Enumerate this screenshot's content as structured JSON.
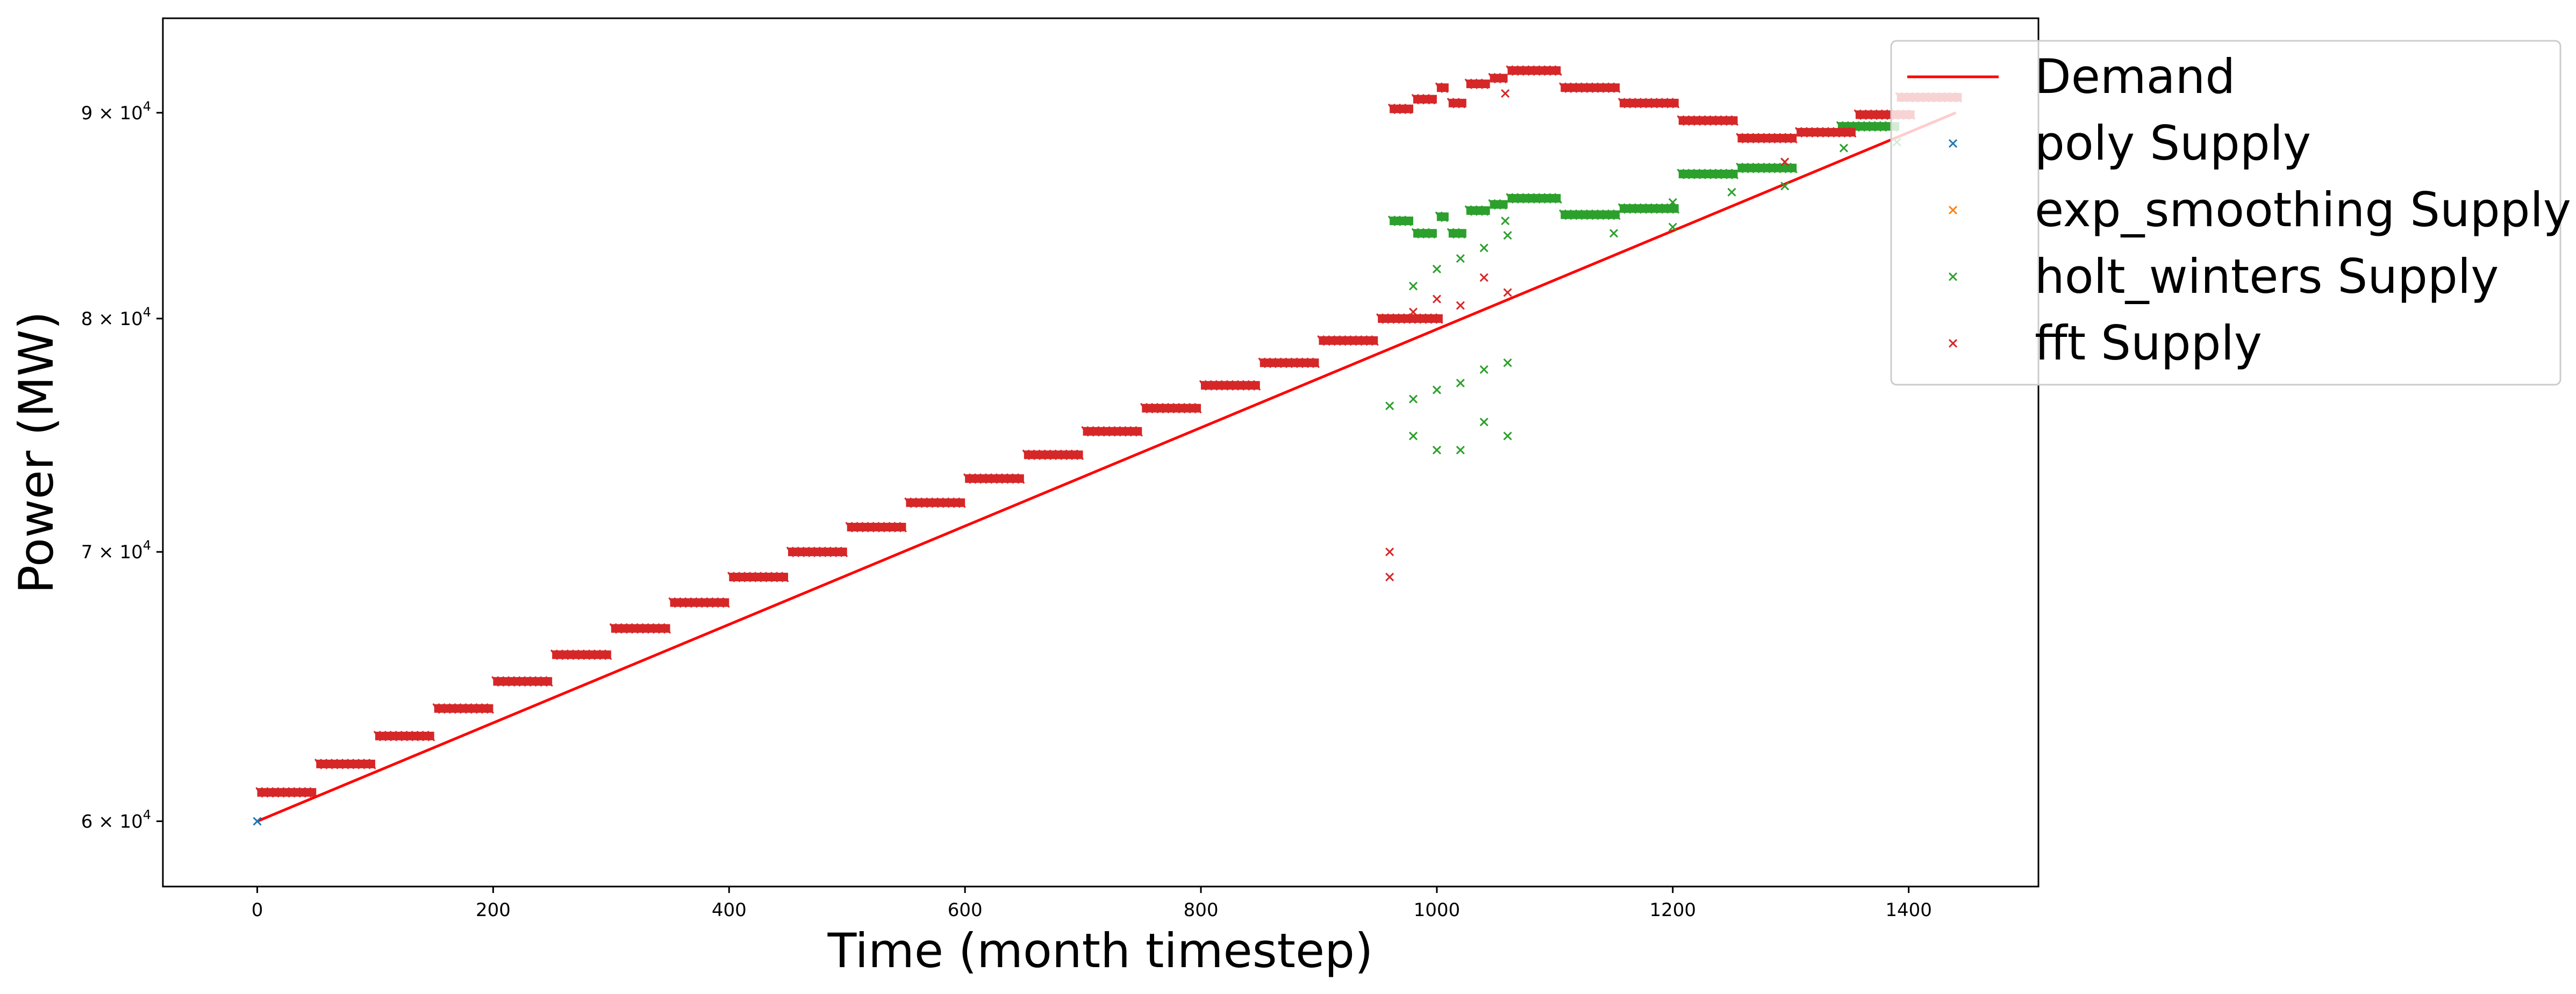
{
  "chart_data": {
    "type": "scatter",
    "xlabel": "Time (month timestep)",
    "ylabel": "Power (MW)",
    "xlim": [
      -80,
      1510
    ],
    "ylim": [
      57800,
      95000
    ],
    "y_scale": "log",
    "grid": false,
    "legend_placement": "top-right",
    "x_ticks": [
      0,
      200,
      400,
      600,
      800,
      1000,
      1200,
      1400
    ],
    "x_tick_labels": [
      "0",
      "200",
      "400",
      "600",
      "800",
      "1000",
      "1200",
      "1400"
    ],
    "y_ticks": [
      {
        "value": 60000,
        "mantissa": "6",
        "exponent": "4"
      },
      {
        "value": 70000,
        "mantissa": "7",
        "exponent": "4"
      },
      {
        "value": 80000,
        "mantissa": "8",
        "exponent": "4"
      },
      {
        "value": 90000,
        "mantissa": "9",
        "exponent": "4"
      }
    ],
    "y_tick_times": "×",
    "y_tick_base": "10",
    "demand": {
      "name": "Demand",
      "color": "#ff0000",
      "x": [
        0,
        1440
      ],
      "y": [
        60000,
        90000
      ]
    },
    "series": [
      {
        "name": "poly Supply",
        "color": "#1f77b4",
        "points": [
          [
            0,
            60000
          ]
        ]
      },
      {
        "name": "exp_smoothing Supply",
        "color": "#ff7f0e",
        "points": []
      },
      {
        "name": "holt_winters Supply",
        "color": "#2ca02c",
        "segments": [
          {
            "x": [
              960,
              980
            ],
            "y": 84600
          },
          {
            "x": [
              980,
              1000
            ],
            "y": 84000
          },
          {
            "x": [
              1000,
              1010
            ],
            "y": 84800
          },
          {
            "x": [
              1010,
              1025
            ],
            "y": 84000
          },
          {
            "x": [
              1025,
              1045
            ],
            "y": 85100
          },
          {
            "x": [
              1045,
              1060
            ],
            "y": 85400
          },
          {
            "x": [
              1060,
              1105
            ],
            "y": 85700
          },
          {
            "x": [
              1105,
              1155
            ],
            "y": 84900
          },
          {
            "x": [
              1155,
              1205
            ],
            "y": 85200
          },
          {
            "x": [
              1205,
              1255
            ],
            "y": 86900
          },
          {
            "x": [
              1255,
              1305
            ],
            "y": 87200
          },
          {
            "x": [
              1340,
              1392
            ],
            "y": 89300
          }
        ],
        "points": [
          [
            960,
            76100
          ],
          [
            980,
            76400
          ],
          [
            1000,
            76800
          ],
          [
            1020,
            77100
          ],
          [
            1040,
            77700
          ],
          [
            1060,
            78000
          ],
          [
            980,
            74800
          ],
          [
            1000,
            74200
          ],
          [
            1020,
            74200
          ],
          [
            1040,
            75400
          ],
          [
            1060,
            74800
          ],
          [
            980,
            81500
          ],
          [
            1000,
            82300
          ],
          [
            1020,
            82800
          ],
          [
            1040,
            83300
          ],
          [
            1060,
            83900
          ],
          [
            1058,
            84600
          ],
          [
            1150,
            84000
          ],
          [
            1200,
            84300
          ],
          [
            1200,
            85500
          ],
          [
            1250,
            86000
          ],
          [
            1295,
            86300
          ],
          [
            1295,
            87500
          ],
          [
            1345,
            88200
          ],
          [
            1390,
            88500
          ]
        ]
      },
      {
        "name": "fft Supply",
        "color": "#d62728",
        "segments": [
          {
            "x": [
              0,
              50
            ],
            "y": 61000
          },
          {
            "x": [
              50,
              100
            ],
            "y": 62000
          },
          {
            "x": [
              100,
              150
            ],
            "y": 63000
          },
          {
            "x": [
              150,
              200
            ],
            "y": 64000
          },
          {
            "x": [
              200,
              250
            ],
            "y": 65000
          },
          {
            "x": [
              250,
              300
            ],
            "y": 66000
          },
          {
            "x": [
              300,
              350
            ],
            "y": 67000
          },
          {
            "x": [
              350,
              400
            ],
            "y": 68000
          },
          {
            "x": [
              400,
              450
            ],
            "y": 69000
          },
          {
            "x": [
              450,
              500
            ],
            "y": 70000
          },
          {
            "x": [
              500,
              550
            ],
            "y": 71000
          },
          {
            "x": [
              550,
              600
            ],
            "y": 72000
          },
          {
            "x": [
              600,
              650
            ],
            "y": 73000
          },
          {
            "x": [
              650,
              700
            ],
            "y": 74000
          },
          {
            "x": [
              700,
              750
            ],
            "y": 75000
          },
          {
            "x": [
              750,
              800
            ],
            "y": 76000
          },
          {
            "x": [
              800,
              850
            ],
            "y": 77000
          },
          {
            "x": [
              850,
              900
            ],
            "y": 78000
          },
          {
            "x": [
              900,
              950
            ],
            "y": 79000
          },
          {
            "x": [
              950,
              1005
            ],
            "y": 80000
          },
          {
            "x": [
              960,
              980
            ],
            "y": 90200
          },
          {
            "x": [
              980,
              1000
            ],
            "y": 90700
          },
          {
            "x": [
              1000,
              1010
            ],
            "y": 91300
          },
          {
            "x": [
              1010,
              1025
            ],
            "y": 90500
          },
          {
            "x": [
              1025,
              1045
            ],
            "y": 91500
          },
          {
            "x": [
              1045,
              1060
            ],
            "y": 91800
          },
          {
            "x": [
              1060,
              1105
            ],
            "y": 92200
          },
          {
            "x": [
              1105,
              1155
            ],
            "y": 91300
          },
          {
            "x": [
              1155,
              1205
            ],
            "y": 90500
          },
          {
            "x": [
              1205,
              1255
            ],
            "y": 89600
          },
          {
            "x": [
              1255,
              1305
            ],
            "y": 88700
          },
          {
            "x": [
              1305,
              1355
            ],
            "y": 89000
          },
          {
            "x": [
              1355,
              1405
            ],
            "y": 89900
          },
          {
            "x": [
              1390,
              1445
            ],
            "y": 90800
          }
        ],
        "points": [
          [
            960,
            70000
          ],
          [
            960,
            69000
          ],
          [
            980,
            80300
          ],
          [
            1000,
            80900
          ],
          [
            1020,
            80600
          ],
          [
            1040,
            81900
          ],
          [
            1060,
            81200
          ],
          [
            1058,
            91000
          ],
          [
            1295,
            87500
          ]
        ]
      }
    ]
  }
}
